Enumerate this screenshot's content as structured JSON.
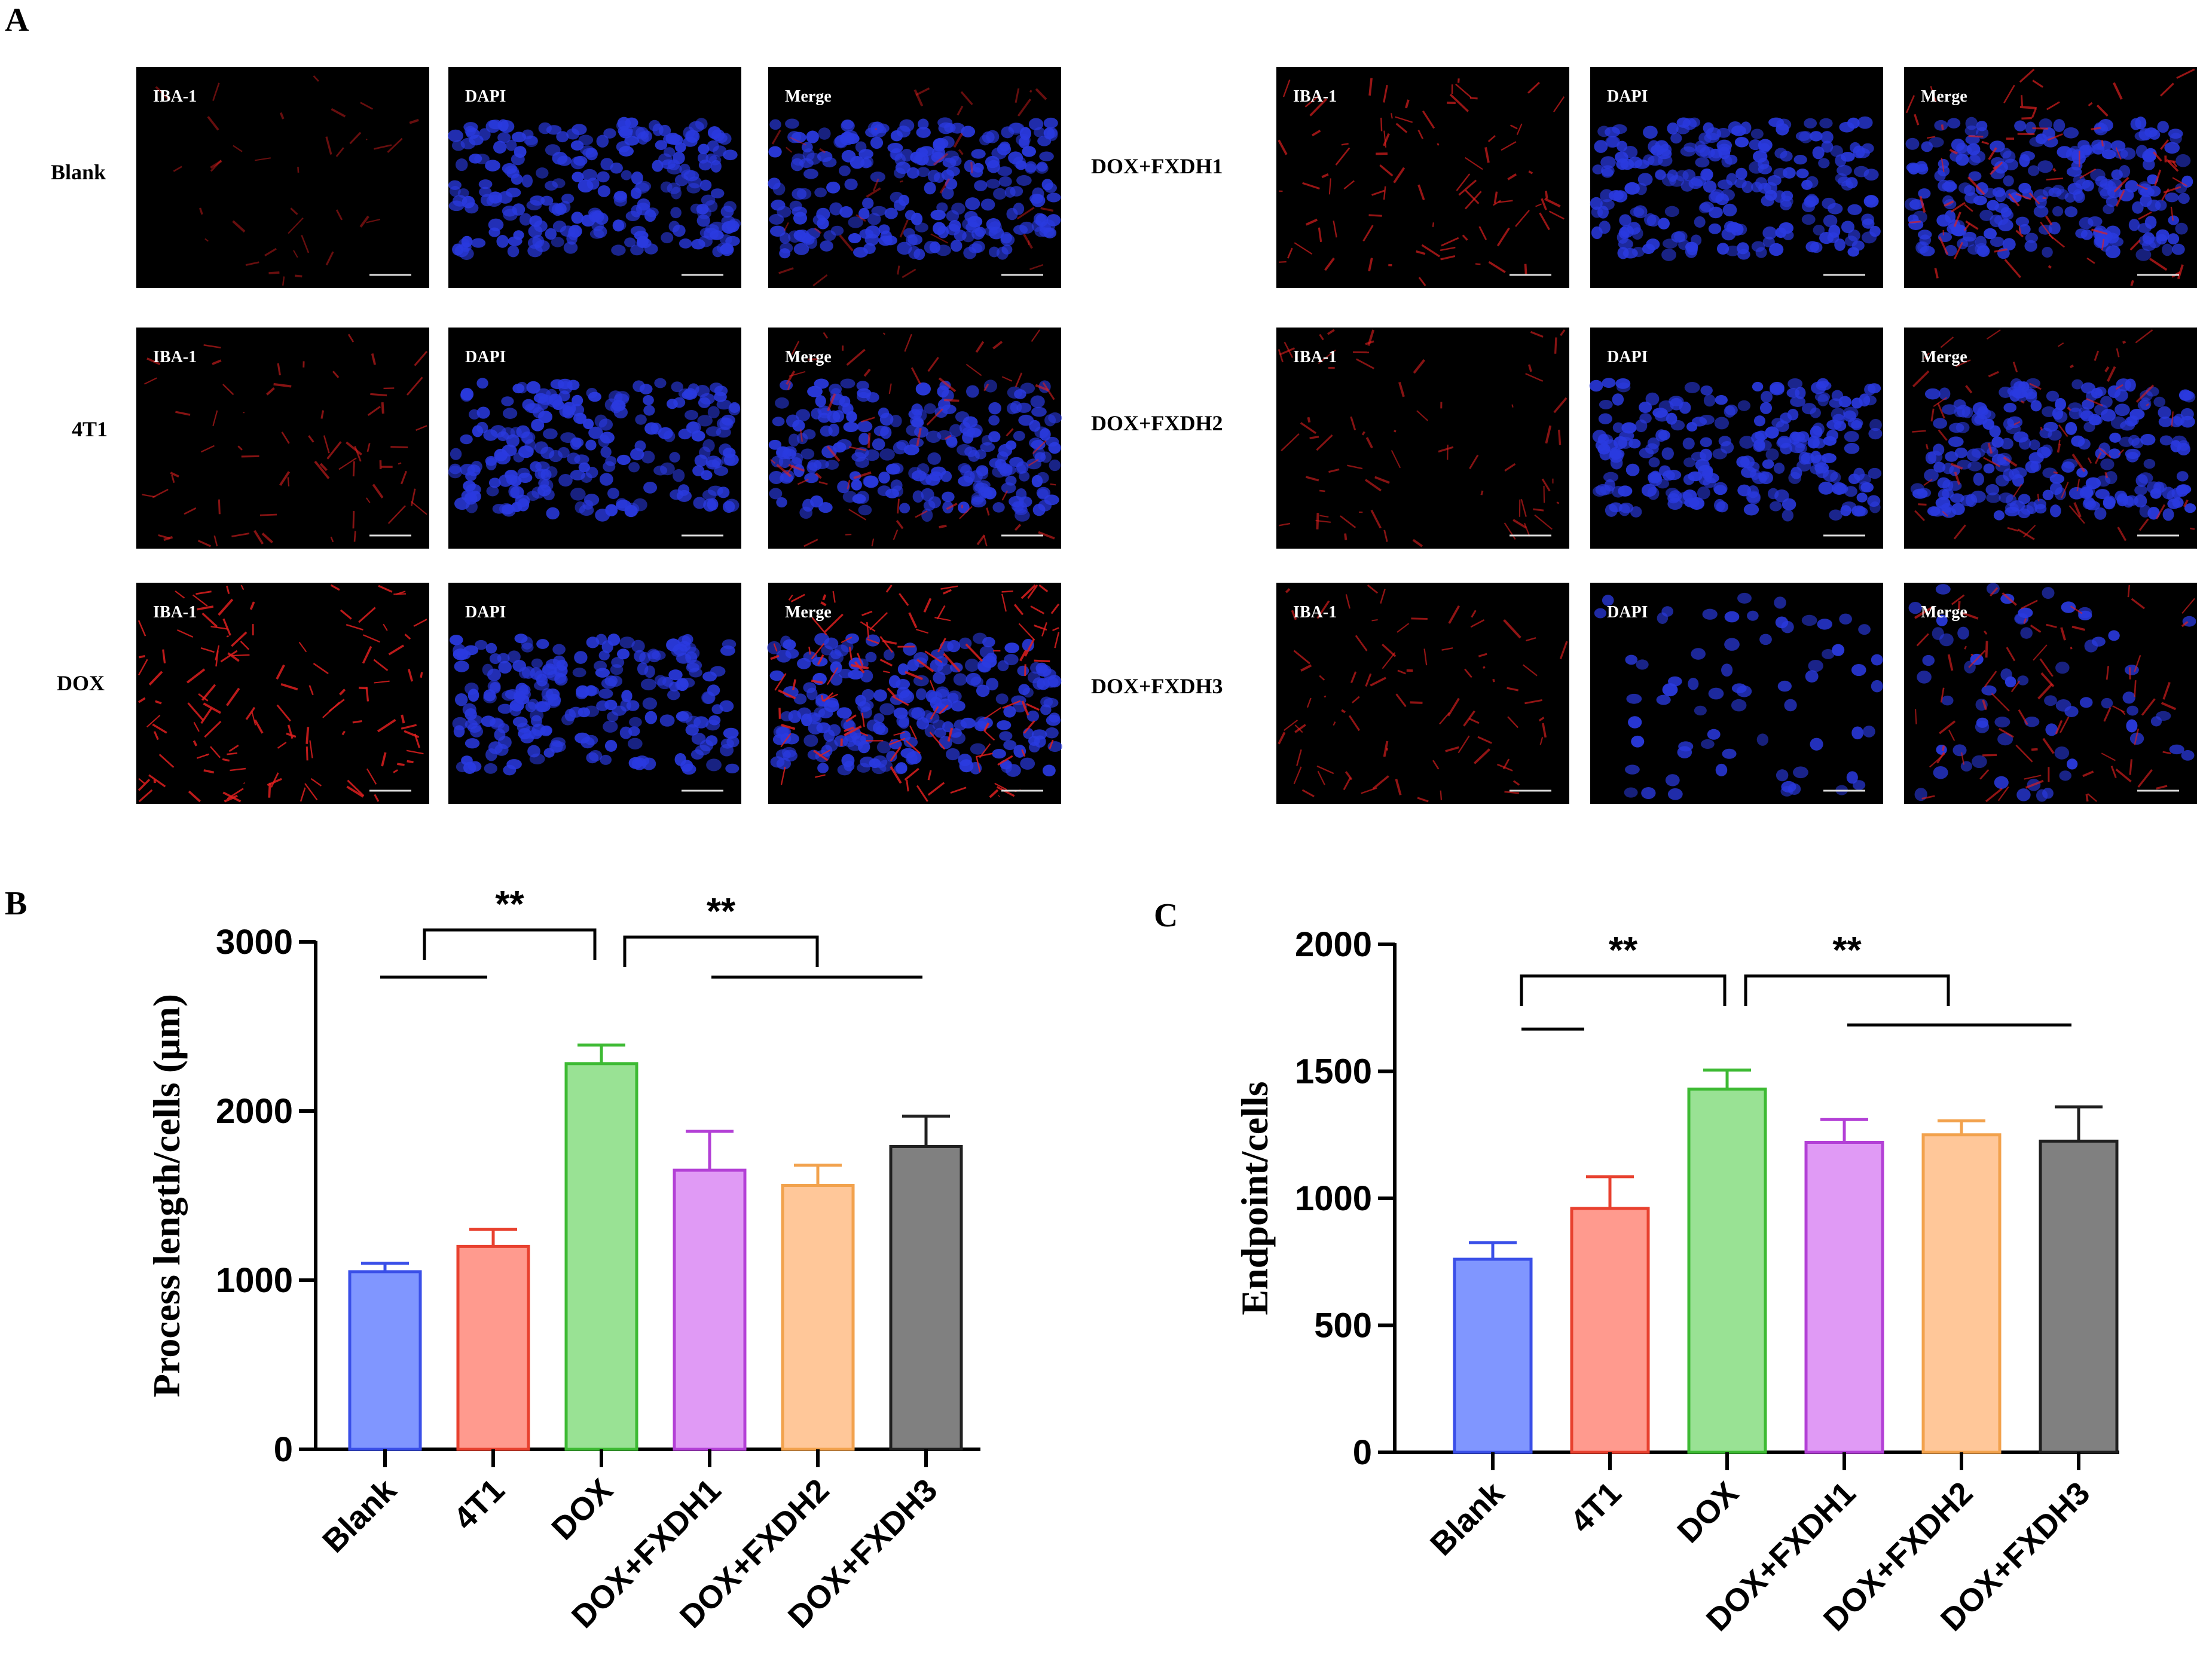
{
  "panel_labels": {
    "A": "A",
    "B": "B",
    "C": "C"
  },
  "micrographs": {
    "channels": [
      "IBA-1",
      "DAPI",
      "Merge"
    ],
    "groups": [
      "Blank",
      "4T1",
      "DOX",
      "DOX+FXDH1",
      "DOX+FXDH2",
      "DOX+FXDH3"
    ],
    "staining_intensity": [
      0.2,
      0.45,
      0.9,
      0.6,
      0.45,
      0.55
    ],
    "dapi_density": [
      0.9,
      0.85,
      0.85,
      0.85,
      0.85,
      0.25
    ],
    "colors": {
      "iba1": "#e02020",
      "dapi": "#2030e0",
      "background": "#000000"
    }
  },
  "chart_data": [
    {
      "type": "bar",
      "panel": "B",
      "categories": [
        "Blank",
        "4T1",
        "DOX",
        "DOX+FXDH1",
        "DOX+FXDH2",
        "DOX+FXDH3"
      ],
      "values": [
        1050,
        1200,
        2280,
        1650,
        1560,
        1790
      ],
      "errors": [
        50,
        100,
        110,
        230,
        120,
        180
      ],
      "ylabel": "Process length/cells (μm)",
      "ylim": [
        0,
        3000
      ],
      "yticks": [
        0,
        1000,
        2000,
        3000
      ],
      "significance": [
        "**",
        "**"
      ],
      "colors": {
        "fill": [
          "#8096ff",
          "#ff9a8e",
          "#99e294",
          "#e09af5",
          "#ffc799",
          "#808080"
        ],
        "edge": [
          "#3a4fe8",
          "#e8412f",
          "#3dba33",
          "#b340d6",
          "#f2a24d",
          "#202020"
        ]
      }
    },
    {
      "type": "bar",
      "panel": "C",
      "categories": [
        "Blank",
        "4T1",
        "DOX",
        "DOX+FXDH1",
        "DOX+FXDH2",
        "DOX+FXDH3"
      ],
      "values": [
        760,
        960,
        1430,
        1220,
        1250,
        1225
      ],
      "errors": [
        65,
        125,
        75,
        90,
        55,
        135
      ],
      "ylabel": "Endpoint/cells",
      "ylim": [
        0,
        2000
      ],
      "yticks": [
        0,
        500,
        1000,
        1500,
        2000
      ],
      "significance": [
        "**",
        "**"
      ],
      "colors": {
        "fill": [
          "#8096ff",
          "#ff9a8e",
          "#99e294",
          "#e09af5",
          "#ffc799",
          "#808080"
        ],
        "edge": [
          "#3a4fe8",
          "#e8412f",
          "#3dba33",
          "#b340d6",
          "#f2a24d",
          "#202020"
        ]
      }
    }
  ]
}
